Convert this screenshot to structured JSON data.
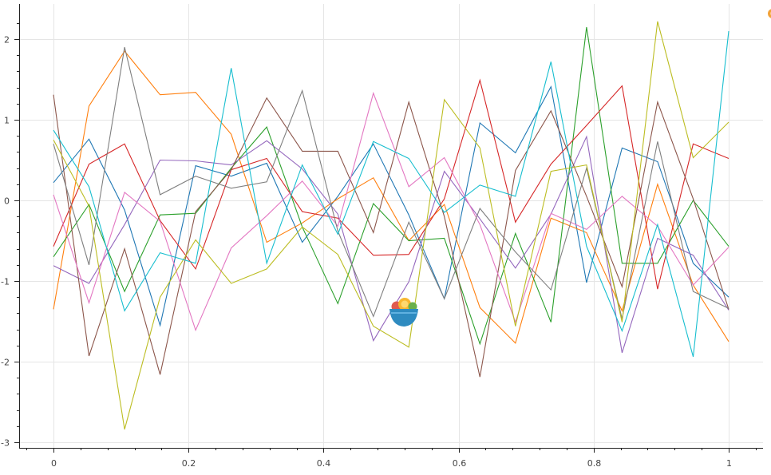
{
  "chart_data": {
    "type": "line",
    "title": "",
    "xlabel": "",
    "ylabel": "",
    "xlim": [
      -0.04,
      1.05
    ],
    "ylim": [
      -3.07,
      2.45
    ],
    "grid": true,
    "x_ticks": [
      0,
      0.2,
      0.4,
      0.6,
      0.8,
      1
    ],
    "x_tick_labels": [
      "0",
      "0.2",
      "0.4",
      "0.6",
      "0.8",
      "1"
    ],
    "y_ticks": [
      -3,
      -2,
      -1,
      0,
      1,
      2
    ],
    "y_tick_labels": [
      "-3",
      "-2",
      "-1",
      "0",
      "1",
      "2"
    ],
    "x": [
      0,
      0.0526,
      0.1053,
      0.1579,
      0.2105,
      0.2632,
      0.3158,
      0.3684,
      0.4211,
      0.4737,
      0.5263,
      0.5789,
      0.6316,
      0.6842,
      0.7368,
      0.7895,
      0.8421,
      0.8947,
      0.9474,
      1.0
    ],
    "series": [
      {
        "color": "#1f77b4",
        "values": [
          0.22,
          0.76,
          -0.12,
          -1.55,
          0.43,
          0.3,
          0.46,
          -0.52,
          0.05,
          0.7,
          -0.18,
          -1.22,
          0.96,
          0.59,
          1.41,
          -1.02,
          0.65,
          0.48,
          -0.78,
          -1.2
        ]
      },
      {
        "color": "#ff7f0e",
        "values": [
          -1.35,
          1.17,
          1.85,
          1.31,
          1.34,
          0.82,
          -0.52,
          -0.28,
          0.02,
          0.28,
          -0.5,
          -0.05,
          -1.33,
          -1.77,
          -0.22,
          -0.4,
          -1.37,
          0.2,
          -1.05,
          -1.75
        ]
      },
      {
        "color": "#2ca02c",
        "values": [
          -0.7,
          -0.05,
          -1.13,
          -0.18,
          -0.16,
          0.4,
          0.91,
          -0.33,
          -1.28,
          -0.04,
          -0.5,
          -0.47,
          -1.78,
          -0.41,
          -1.51,
          2.15,
          -0.78,
          -0.78,
          0.0,
          -0.57
        ]
      },
      {
        "color": "#d62728",
        "values": [
          -0.57,
          0.45,
          0.7,
          -0.25,
          -0.85,
          0.38,
          0.52,
          -0.14,
          -0.22,
          -0.68,
          -0.67,
          0.02,
          1.49,
          -0.27,
          0.45,
          0.93,
          1.42,
          -1.1,
          0.7,
          0.52
        ]
      },
      {
        "color": "#9467bd",
        "values": [
          -0.81,
          -1.03,
          -0.3,
          0.5,
          0.49,
          0.44,
          0.74,
          0.39,
          -0.17,
          -1.74,
          -1.01,
          0.36,
          -0.23,
          -0.84,
          -0.17,
          0.79,
          -1.89,
          -0.47,
          -0.68,
          -1.36
        ]
      },
      {
        "color": "#8c564b",
        "values": [
          1.31,
          -1.93,
          -0.6,
          -2.16,
          -0.14,
          0.38,
          1.27,
          0.61,
          0.61,
          -0.4,
          1.22,
          -0.2,
          -2.19,
          0.37,
          1.11,
          0.05,
          -1.07,
          1.22,
          0.02,
          -1.35
        ]
      },
      {
        "color": "#e377c2",
        "values": [
          0.07,
          -1.27,
          0.1,
          -0.26,
          -1.61,
          -0.59,
          -0.19,
          0.24,
          -0.32,
          1.33,
          0.17,
          0.53,
          -0.3,
          -1.51,
          -0.16,
          -0.36,
          0.05,
          -0.32,
          -1.05,
          -0.58
        ]
      },
      {
        "color": "#7f7f7f",
        "values": [
          0.7,
          -0.8,
          1.9,
          0.07,
          0.3,
          0.15,
          0.23,
          1.36,
          -0.38,
          -1.44,
          -0.27,
          -1.22,
          -0.1,
          -0.64,
          -1.11,
          0.4,
          -1.47,
          0.73,
          -1.13,
          -1.34
        ]
      },
      {
        "color": "#bcbd22",
        "values": [
          0.75,
          -0.07,
          -2.84,
          -1.2,
          -0.49,
          -1.03,
          -0.85,
          -0.33,
          -0.67,
          -1.56,
          -1.82,
          1.25,
          0.65,
          -1.56,
          0.36,
          0.44,
          -1.51,
          2.22,
          0.53,
          0.97
        ]
      },
      {
        "color": "#17becf",
        "values": [
          0.87,
          0.17,
          -1.37,
          -0.65,
          -0.78,
          1.64,
          -0.78,
          0.44,
          -0.42,
          0.73,
          0.52,
          -0.15,
          0.19,
          0.05,
          1.72,
          -0.57,
          -1.62,
          -0.3,
          -1.94,
          2.1
        ]
      }
    ]
  },
  "icons": {
    "fruit_bowl": "fruit-bowl-icon",
    "corner_badge": "corner-badge-icon"
  }
}
